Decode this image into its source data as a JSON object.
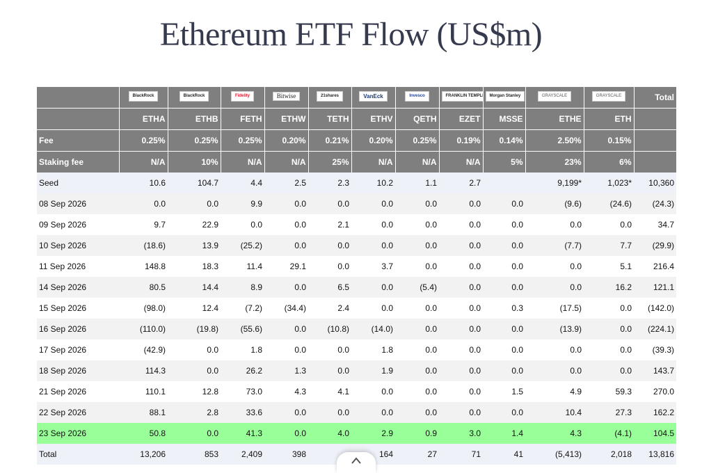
{
  "title": "Ethereum ETF Flow (US$m)",
  "funds": [
    {
      "logo": "BlackRock",
      "ticker": "ETHA",
      "fee": "0.25%",
      "staking": "N/A"
    },
    {
      "logo": "BlackRock",
      "ticker": "ETHB",
      "fee": "0.25%",
      "staking": "10%"
    },
    {
      "logo": "Fidelity",
      "ticker": "FETH",
      "fee": "0.25%",
      "staking": "N/A"
    },
    {
      "logo": "Bitwise",
      "ticker": "ETHW",
      "fee": "0.20%",
      "staking": "N/A"
    },
    {
      "logo": "21shares",
      "ticker": "TETH",
      "fee": "0.21%",
      "staking": "25%"
    },
    {
      "logo": "VanEck",
      "ticker": "ETHV",
      "fee": "0.20%",
      "staking": "N/A"
    },
    {
      "logo": "Invesco",
      "ticker": "QETH",
      "fee": "0.25%",
      "staking": "N/A"
    },
    {
      "logo": "FRANKLIN TEMPLETON",
      "ticker": "EZET",
      "fee": "0.19%",
      "staking": "N/A"
    },
    {
      "logo": "Morgan Stanley",
      "ticker": "MSSE",
      "fee": "0.14%",
      "staking": "5%"
    },
    {
      "logo": "GRAYSCALE",
      "ticker": "ETHE",
      "fee": "2.50%",
      "staking": "23%"
    },
    {
      "logo": "GRAYSCALE",
      "ticker": "ETH",
      "fee": "0.15%",
      "staking": "6%"
    }
  ],
  "header": {
    "total_label": "Total",
    "fee_label": "Fee",
    "staking_label": "Staking fee"
  },
  "rows": [
    {
      "label": "Seed",
      "values": [
        "10.6",
        "104.7",
        "4.4",
        "2.5",
        "2.3",
        "10.2",
        "1.1",
        "2.7",
        "",
        "9,199*",
        "1,023*",
        "10,360"
      ]
    },
    {
      "label": "08 Sep 2026",
      "values": [
        "0.0",
        "0.0",
        "9.9",
        "0.0",
        "0.0",
        "0.0",
        "0.0",
        "0.0",
        "0.0",
        "(9.6)",
        "(24.6)",
        "(24.3)"
      ]
    },
    {
      "label": "09 Sep 2026",
      "values": [
        "9.7",
        "22.9",
        "0.0",
        "0.0",
        "2.1",
        "0.0",
        "0.0",
        "0.0",
        "0.0",
        "0.0",
        "0.0",
        "34.7"
      ]
    },
    {
      "label": "10 Sep 2026",
      "values": [
        "(18.6)",
        "13.9",
        "(25.2)",
        "0.0",
        "0.0",
        "0.0",
        "0.0",
        "0.0",
        "0.0",
        "(7.7)",
        "7.7",
        "(29.9)"
      ]
    },
    {
      "label": "11 Sep 2026",
      "values": [
        "148.8",
        "18.3",
        "11.4",
        "29.1",
        "0.0",
        "3.7",
        "0.0",
        "0.0",
        "0.0",
        "0.0",
        "5.1",
        "216.4"
      ]
    },
    {
      "label": "14 Sep 2026",
      "values": [
        "80.5",
        "14.4",
        "8.9",
        "0.0",
        "6.5",
        "0.0",
        "(5.4)",
        "0.0",
        "0.0",
        "0.0",
        "16.2",
        "121.1"
      ]
    },
    {
      "label": "15 Sep 2026",
      "values": [
        "(98.0)",
        "12.4",
        "(7.2)",
        "(34.4)",
        "2.4",
        "0.0",
        "0.0",
        "0.0",
        "0.3",
        "(17.5)",
        "0.0",
        "(142.0)"
      ]
    },
    {
      "label": "16 Sep 2026",
      "values": [
        "(110.0)",
        "(19.8)",
        "(55.6)",
        "0.0",
        "(10.8)",
        "(14.0)",
        "0.0",
        "0.0",
        "0.0",
        "(13.9)",
        "0.0",
        "(224.1)"
      ]
    },
    {
      "label": "17 Sep 2026",
      "values": [
        "(42.9)",
        "0.0",
        "1.8",
        "0.0",
        "0.0",
        "1.8",
        "0.0",
        "0.0",
        "0.0",
        "0.0",
        "0.0",
        "(39.3)"
      ]
    },
    {
      "label": "18 Sep 2026",
      "values": [
        "114.3",
        "0.0",
        "26.2",
        "1.3",
        "0.0",
        "1.9",
        "0.0",
        "0.0",
        "0.0",
        "0.0",
        "0.0",
        "143.7"
      ]
    },
    {
      "label": "21 Sep 2026",
      "values": [
        "110.1",
        "12.8",
        "73.0",
        "4.3",
        "4.1",
        "0.0",
        "0.0",
        "0.0",
        "1.5",
        "4.9",
        "59.3",
        "270.0"
      ]
    },
    {
      "label": "22 Sep 2026",
      "values": [
        "88.1",
        "2.8",
        "33.6",
        "0.0",
        "0.0",
        "0.0",
        "0.0",
        "0.0",
        "0.0",
        "10.4",
        "27.3",
        "162.2"
      ]
    },
    {
      "label": "23 Sep 2026",
      "values": [
        "50.8",
        "0.0",
        "41.3",
        "0.0",
        "4.0",
        "2.9",
        "0.9",
        "3.0",
        "1.4",
        "4.3",
        "(4.1)",
        "104.5"
      ]
    },
    {
      "label": "Total",
      "values": [
        "13,206",
        "853",
        "2,409",
        "398",
        "",
        "164",
        "27",
        "71",
        "41",
        "(5,413)",
        "2,018",
        "13,816"
      ]
    }
  ],
  "scroll_button": "chevron-up-icon",
  "colors": {
    "header_bg": "#7f7f7f",
    "highlight_row": "#99ff99",
    "negative": "#e00000",
    "zero": "#c8c8c8"
  }
}
